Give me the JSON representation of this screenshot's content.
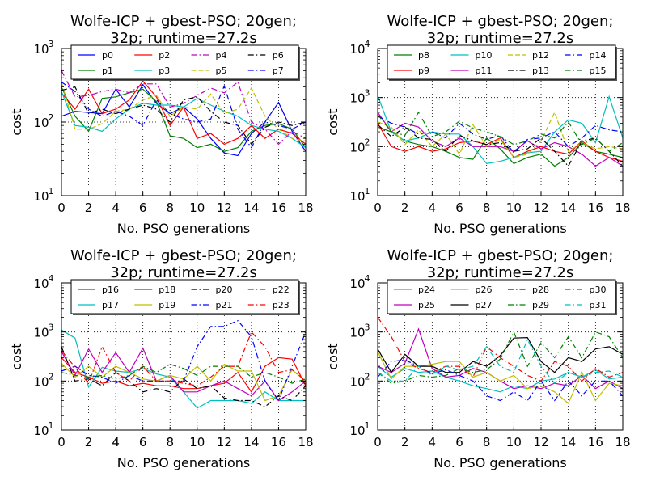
{
  "chart_data": [
    {
      "type": "line",
      "title_line1": "Wolfe-ICP + gbest-PSO; 20gen;",
      "title_line2": "32p; runtime=27.2s",
      "xlabel": "No. PSO generations",
      "ylabel": "cost",
      "yscale": "log",
      "xlim": [
        0,
        18
      ],
      "ylim": [
        10,
        1000
      ],
      "xticks": [
        "0",
        "2",
        "4",
        "6",
        "8",
        "10",
        "12",
        "14",
        "16",
        "18"
      ],
      "yticks": [
        {
          "base": "10",
          "exp": "1"
        },
        {
          "base": "10",
          "exp": "2"
        },
        {
          "base": "10",
          "exp": "3"
        }
      ],
      "grid": true,
      "legend": "top",
      "x": [
        0,
        1,
        2,
        3,
        4,
        5,
        6,
        7,
        8,
        9,
        10,
        11,
        12,
        13,
        14,
        15,
        16,
        17,
        18
      ],
      "series": [
        {
          "name": "p0",
          "color": "#0000ff",
          "dash": "solid",
          "values": [
            120,
            140,
            135,
            130,
            280,
            160,
            320,
            180,
            130,
            160,
            110,
            60,
            38,
            35,
            70,
            100,
            185,
            75,
            40
          ]
        },
        {
          "name": "p1",
          "color": "#008000",
          "dash": "solid",
          "values": [
            300,
            120,
            75,
            210,
            220,
            250,
            280,
            190,
            65,
            60,
            45,
            50,
            40,
            45,
            75,
            90,
            95,
            80,
            45
          ]
        },
        {
          "name": "p2",
          "color": "#ff0000",
          "dash": "solid",
          "values": [
            250,
            150,
            280,
            130,
            150,
            200,
            360,
            220,
            90,
            160,
            60,
            70,
            50,
            60,
            90,
            60,
            80,
            70,
            50
          ]
        },
        {
          "name": "p3",
          "color": "#00bfbf",
          "dash": "solid",
          "values": [
            260,
            90,
            85,
            75,
            110,
            150,
            180,
            170,
            170,
            160,
            210,
            170,
            140,
            120,
            90,
            80,
            75,
            60,
            45
          ]
        },
        {
          "name": "p4",
          "color": "#bf00bf",
          "dash": "dashdot",
          "values": [
            500,
            220,
            230,
            260,
            280,
            250,
            330,
            330,
            160,
            180,
            230,
            290,
            250,
            350,
            100,
            80,
            50,
            75,
            60
          ]
        },
        {
          "name": "p5",
          "color": "#bfbf00",
          "dash": "dashed",
          "values": [
            350,
            80,
            80,
            95,
            140,
            150,
            200,
            230,
            120,
            160,
            150,
            240,
            130,
            150,
            290,
            120,
            80,
            60,
            55
          ]
        },
        {
          "name": "p6",
          "color": "#000000",
          "dash": "dashdot",
          "values": [
            270,
            300,
            130,
            150,
            130,
            150,
            170,
            150,
            100,
            200,
            220,
            140,
            100,
            90,
            50,
            85,
            100,
            90,
            100
          ]
        },
        {
          "name": "p7",
          "color": "#0000ff",
          "dash": "dashdot",
          "values": [
            350,
            260,
            150,
            120,
            140,
            120,
            90,
            200,
            130,
            110,
            100,
            110,
            310,
            80,
            45,
            100,
            90,
            80,
            100
          ]
        }
      ]
    },
    {
      "type": "line",
      "title_line1": "Wolfe-ICP + gbest-PSO; 20gen;",
      "title_line2": "32p; runtime=27.2s",
      "xlabel": "No. PSO generations",
      "ylabel": "cost",
      "yscale": "log",
      "xlim": [
        0,
        18
      ],
      "ylim": [
        10,
        10000
      ],
      "xticks": [
        "0",
        "2",
        "4",
        "6",
        "8",
        "10",
        "12",
        "14",
        "16",
        "18"
      ],
      "yticks": [
        {
          "base": "10",
          "exp": "1"
        },
        {
          "base": "10",
          "exp": "2"
        },
        {
          "base": "10",
          "exp": "3"
        },
        {
          "base": "10",
          "exp": "4"
        }
      ],
      "grid": true,
      "legend": "top",
      "x": [
        0,
        1,
        2,
        3,
        4,
        5,
        6,
        7,
        8,
        9,
        10,
        11,
        12,
        13,
        14,
        15,
        16,
        17,
        18
      ],
      "series": [
        {
          "name": "p8",
          "color": "#008000",
          "dash": "solid",
          "values": [
            250,
            200,
            130,
            110,
            100,
            80,
            60,
            55,
            150,
            90,
            45,
            60,
            70,
            40,
            60,
            120,
            80,
            70,
            60
          ]
        },
        {
          "name": "p9",
          "color": "#ff0000",
          "dash": "solid",
          "values": [
            300,
            100,
            80,
            100,
            80,
            90,
            120,
            130,
            110,
            150,
            60,
            80,
            100,
            80,
            70,
            130,
            80,
            60,
            50
          ]
        },
        {
          "name": "p10",
          "color": "#00bfbf",
          "dash": "solid",
          "values": [
            1100,
            200,
            130,
            150,
            200,
            180,
            180,
            100,
            45,
            50,
            60,
            75,
            80,
            200,
            350,
            300,
            120,
            1050,
            150
          ]
        },
        {
          "name": "p11",
          "color": "#bf00bf",
          "dash": "solid",
          "values": [
            500,
            200,
            300,
            250,
            130,
            100,
            150,
            100,
            100,
            100,
            80,
            130,
            90,
            120,
            100,
            70,
            40,
            60,
            40
          ]
        },
        {
          "name": "p12",
          "color": "#bfbf00",
          "dash": "dashed",
          "values": [
            320,
            250,
            110,
            220,
            100,
            180,
            70,
            280,
            100,
            140,
            60,
            70,
            130,
            500,
            80,
            120,
            90,
            100,
            90
          ]
        },
        {
          "name": "p13",
          "color": "#000000",
          "dash": "dashdot",
          "values": [
            280,
            160,
            250,
            150,
            140,
            80,
            170,
            130,
            110,
            120,
            80,
            90,
            150,
            80,
            40,
            130,
            150,
            80,
            40
          ]
        },
        {
          "name": "p14",
          "color": "#0000ff",
          "dash": "dashdot",
          "values": [
            420,
            300,
            250,
            180,
            200,
            150,
            300,
            180,
            140,
            170,
            75,
            140,
            150,
            200,
            100,
            150,
            270,
            220,
            200
          ]
        },
        {
          "name": "p15",
          "color": "#008000",
          "dash": "dashdot",
          "values": [
            450,
            200,
            170,
            500,
            160,
            200,
            330,
            240,
            200,
            160,
            110,
            130,
            180,
            150,
            320,
            110,
            150,
            80,
            120
          ]
        }
      ]
    },
    {
      "type": "line",
      "title_line1": "Wolfe-ICP + gbest-PSO; 20gen;",
      "title_line2": "32p; runtime=27.2s",
      "xlabel": "No. PSO generations",
      "ylabel": "cost",
      "yscale": "log",
      "xlim": [
        0,
        18
      ],
      "ylim": [
        10,
        10000
      ],
      "xticks": [
        "0",
        "2",
        "4",
        "6",
        "8",
        "10",
        "12",
        "14",
        "16",
        "18"
      ],
      "yticks": [
        {
          "base": "10",
          "exp": "1"
        },
        {
          "base": "10",
          "exp": "2"
        },
        {
          "base": "10",
          "exp": "3"
        },
        {
          "base": "10",
          "exp": "4"
        }
      ],
      "grid": true,
      "legend": "top",
      "x": [
        0,
        1,
        2,
        3,
        4,
        5,
        6,
        7,
        8,
        9,
        10,
        11,
        12,
        13,
        14,
        15,
        16,
        17,
        18
      ],
      "series": [
        {
          "name": "p16",
          "color": "#ff0000",
          "dash": "solid",
          "values": [
            300,
            150,
            120,
            90,
            100,
            80,
            90,
            80,
            80,
            70,
            70,
            80,
            90,
            150,
            60,
            200,
            300,
            280,
            80
          ]
        },
        {
          "name": "p17",
          "color": "#00bfbf",
          "dash": "solid",
          "values": [
            1100,
            750,
            75,
            190,
            160,
            150,
            180,
            140,
            120,
            60,
            28,
            40,
            40,
            40,
            35,
            60,
            40,
            40,
            40
          ]
        },
        {
          "name": "p18",
          "color": "#bf00bf",
          "dash": "solid",
          "values": [
            400,
            130,
            450,
            150,
            380,
            150,
            470,
            100,
            130,
            60,
            60,
            80,
            100,
            70,
            50,
            100,
            40,
            60,
            100
          ]
        },
        {
          "name": "p19",
          "color": "#bfbf00",
          "dash": "solid",
          "values": [
            230,
            120,
            200,
            120,
            200,
            150,
            110,
            100,
            130,
            110,
            200,
            100,
            220,
            160,
            160,
            40,
            50,
            170,
            100
          ]
        },
        {
          "name": "p20",
          "color": "#000000",
          "dash": "dashdot",
          "values": [
            500,
            100,
            110,
            80,
            150,
            100,
            60,
            70,
            60,
            110,
            70,
            80,
            45,
            40,
            40,
            30,
            50,
            40,
            80
          ]
        },
        {
          "name": "p21",
          "color": "#0000ff",
          "dash": "dashdot",
          "values": [
            160,
            200,
            130,
            120,
            90,
            130,
            100,
            100,
            100,
            100,
            500,
            1300,
            1300,
            1700,
            800,
            100,
            40,
            200,
            1000
          ]
        },
        {
          "name": "p22",
          "color": "#008000",
          "dash": "dashdot",
          "values": [
            150,
            130,
            120,
            130,
            110,
            130,
            200,
            150,
            220,
            180,
            130,
            200,
            200,
            200,
            120,
            150,
            120,
            90,
            110
          ]
        },
        {
          "name": "p23",
          "color": "#ff0000",
          "dash": "dashdot",
          "values": [
            420,
            190,
            90,
            500,
            150,
            100,
            200,
            100,
            100,
            90,
            80,
            120,
            200,
            200,
            1000,
            500,
            150,
            170,
            100
          ]
        }
      ]
    },
    {
      "type": "line",
      "title_line1": "Wolfe-ICP + gbest-PSO; 20gen;",
      "title_line2": "32p; runtime=27.2s",
      "xlabel": "No. PSO generations",
      "ylabel": "cost",
      "yscale": "log",
      "xlim": [
        0,
        18
      ],
      "ylim": [
        10,
        10000
      ],
      "xticks": [
        "0",
        "2",
        "4",
        "6",
        "8",
        "10",
        "12",
        "14",
        "16",
        "18"
      ],
      "yticks": [
        {
          "base": "10",
          "exp": "1"
        },
        {
          "base": "10",
          "exp": "2"
        },
        {
          "base": "10",
          "exp": "3"
        },
        {
          "base": "10",
          "exp": "4"
        }
      ],
      "grid": true,
      "legend": "top",
      "x": [
        0,
        1,
        2,
        3,
        4,
        5,
        6,
        7,
        8,
        9,
        10,
        11,
        12,
        13,
        14,
        15,
        16,
        17,
        18
      ],
      "series": [
        {
          "name": "p24",
          "color": "#00bfbf",
          "dash": "solid",
          "values": [
            200,
            120,
            180,
            150,
            160,
            120,
            100,
            80,
            70,
            60,
            80,
            70,
            100,
            110,
            150,
            120,
            170,
            110,
            120
          ]
        },
        {
          "name": "p25",
          "color": "#bf00bf",
          "dash": "solid",
          "values": [
            200,
            150,
            230,
            1150,
            180,
            120,
            130,
            180,
            150,
            100,
            70,
            80,
            70,
            90,
            80,
            130,
            70,
            100,
            70
          ]
        },
        {
          "name": "p26",
          "color": "#bfbf00",
          "dash": "solid",
          "values": [
            400,
            110,
            200,
            200,
            220,
            250,
            250,
            120,
            150,
            100,
            130,
            70,
            80,
            60,
            35,
            150,
            40,
            90,
            80
          ]
        },
        {
          "name": "p27",
          "color": "#000000",
          "dash": "solid",
          "values": [
            450,
            150,
            350,
            200,
            200,
            150,
            150,
            250,
            200,
            330,
            750,
            770,
            250,
            150,
            300,
            250,
            450,
            500,
            350
          ]
        },
        {
          "name": "p28",
          "color": "#0000ff",
          "dash": "dashdot",
          "values": [
            120,
            250,
            270,
            200,
            140,
            170,
            130,
            100,
            50,
            40,
            60,
            40,
            100,
            40,
            100,
            50,
            100,
            100,
            50
          ]
        },
        {
          "name": "p29",
          "color": "#008000",
          "dash": "dashdot",
          "values": [
            150,
            90,
            100,
            130,
            120,
            130,
            180,
            150,
            170,
            280,
            1000,
            200,
            600,
            300,
            800,
            300,
            1000,
            800,
            300
          ]
        },
        {
          "name": "p30",
          "color": "#ff0000",
          "dash": "dashdot",
          "values": [
            2000,
            800,
            250,
            180,
            150,
            200,
            200,
            120,
            500,
            300,
            200,
            130,
            100,
            250,
            200,
            100,
            180,
            120,
            150
          ]
        },
        {
          "name": "p31",
          "color": "#00bfbf",
          "dash": "dashdot",
          "values": [
            150,
            100,
            100,
            200,
            130,
            200,
            170,
            200,
            500,
            200,
            150,
            700,
            200,
            90,
            150,
            120,
            150,
            160,
            120
          ]
        }
      ]
    }
  ]
}
